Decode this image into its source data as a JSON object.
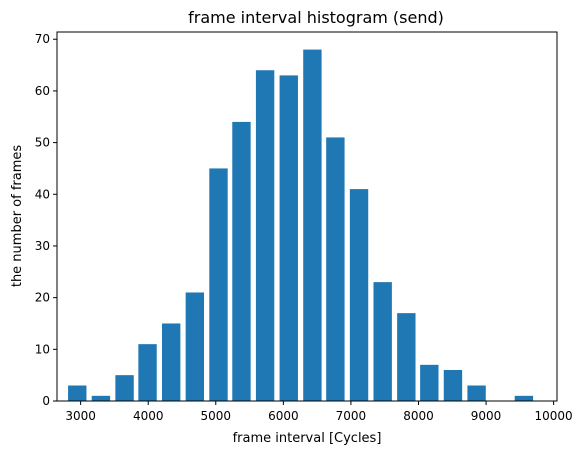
{
  "chart_data": {
    "type": "bar",
    "title": "frame interval histogram (send)",
    "xlabel": "frame interval [Cycles]",
    "ylabel": "the number of frames",
    "xlim": [
      2650,
      10050
    ],
    "ylim": [
      0,
      71.4
    ],
    "xticks": [
      3000,
      4000,
      5000,
      6000,
      7000,
      8000,
      9000,
      10000
    ],
    "yticks": [
      0,
      10,
      20,
      30,
      40,
      50,
      60,
      70
    ],
    "bar_width": 272,
    "bar_color": "#1f77b4",
    "grid": false,
    "legend": false,
    "x": [
      2950,
      3300,
      3650,
      3990,
      4340,
      4690,
      5040,
      5380,
      5730,
      6080,
      6430,
      6770,
      7120,
      7470,
      7820,
      8160,
      8510,
      8860,
      9210,
      9560
    ],
    "values": [
      3,
      1,
      5,
      11,
      15,
      21,
      45,
      54,
      64,
      63,
      68,
      51,
      41,
      23,
      17,
      7,
      6,
      3,
      0,
      1
    ]
  }
}
